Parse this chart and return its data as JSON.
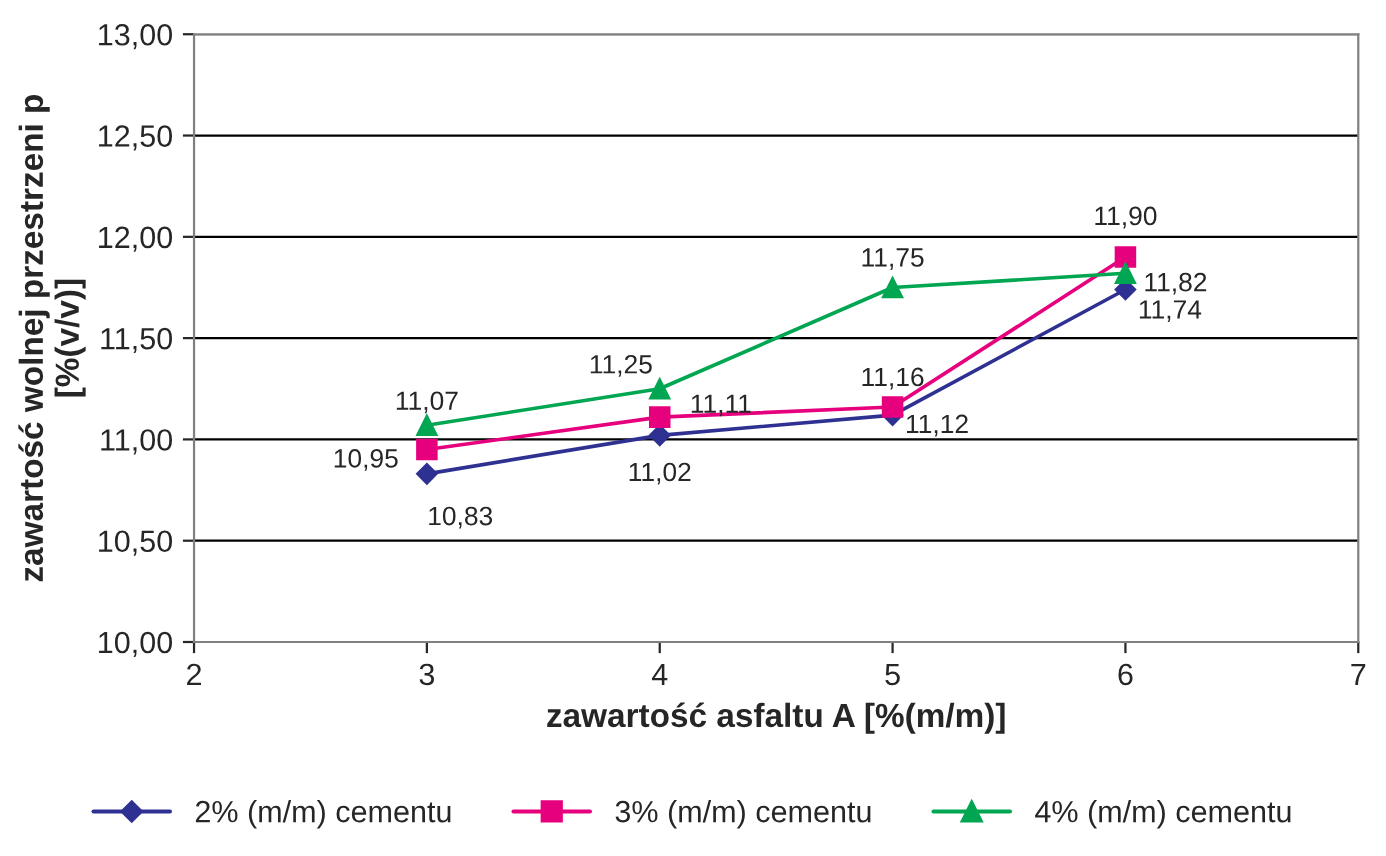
{
  "chart_data": {
    "type": "line",
    "xlabel": "zawartość asfaltu A [%(m/m)]",
    "ylabel": "zawartość wolnej przestrzeni p\n[%(v/v)]",
    "x": [
      3,
      4,
      5,
      6
    ],
    "series": [
      {
        "name": "2% (m/m) cementu",
        "color": "#2e3192",
        "marker": "diamond",
        "values": [
          10.83,
          11.02,
          11.12,
          11.74
        ],
        "value_labels": [
          "10,83",
          "11,02",
          "11,12",
          "11,74"
        ]
      },
      {
        "name": "3% (m/m) cementu",
        "color": "#e6007e",
        "marker": "square",
        "values": [
          10.95,
          11.11,
          11.16,
          11.9
        ],
        "value_labels": [
          "10,95",
          "11,11",
          "11,16",
          "11,90"
        ]
      },
      {
        "name": "4% (m/m) cementu",
        "color": "#00a651",
        "marker": "triangle",
        "values": [
          11.07,
          11.25,
          11.75,
          11.82
        ],
        "value_labels": [
          "11,07",
          "11,25",
          "11,75",
          "11,82"
        ]
      }
    ],
    "xlim": [
      2,
      7
    ],
    "xticks": [
      2,
      3,
      4,
      5,
      6,
      7
    ],
    "ylim": [
      10,
      13
    ],
    "yticks": [
      {
        "value": 10,
        "label": "10,00"
      },
      {
        "value": 10.5,
        "label": "10,50"
      },
      {
        "value": 11,
        "label": "11,00"
      },
      {
        "value": 11.5,
        "label": "11,50"
      },
      {
        "value": 12,
        "label": "12,00"
      },
      {
        "value": 12.5,
        "label": "12,50"
      },
      {
        "value": 13,
        "label": "13,00"
      }
    ],
    "grid": "y",
    "legend": "bottom",
    "line_style": "solid"
  }
}
